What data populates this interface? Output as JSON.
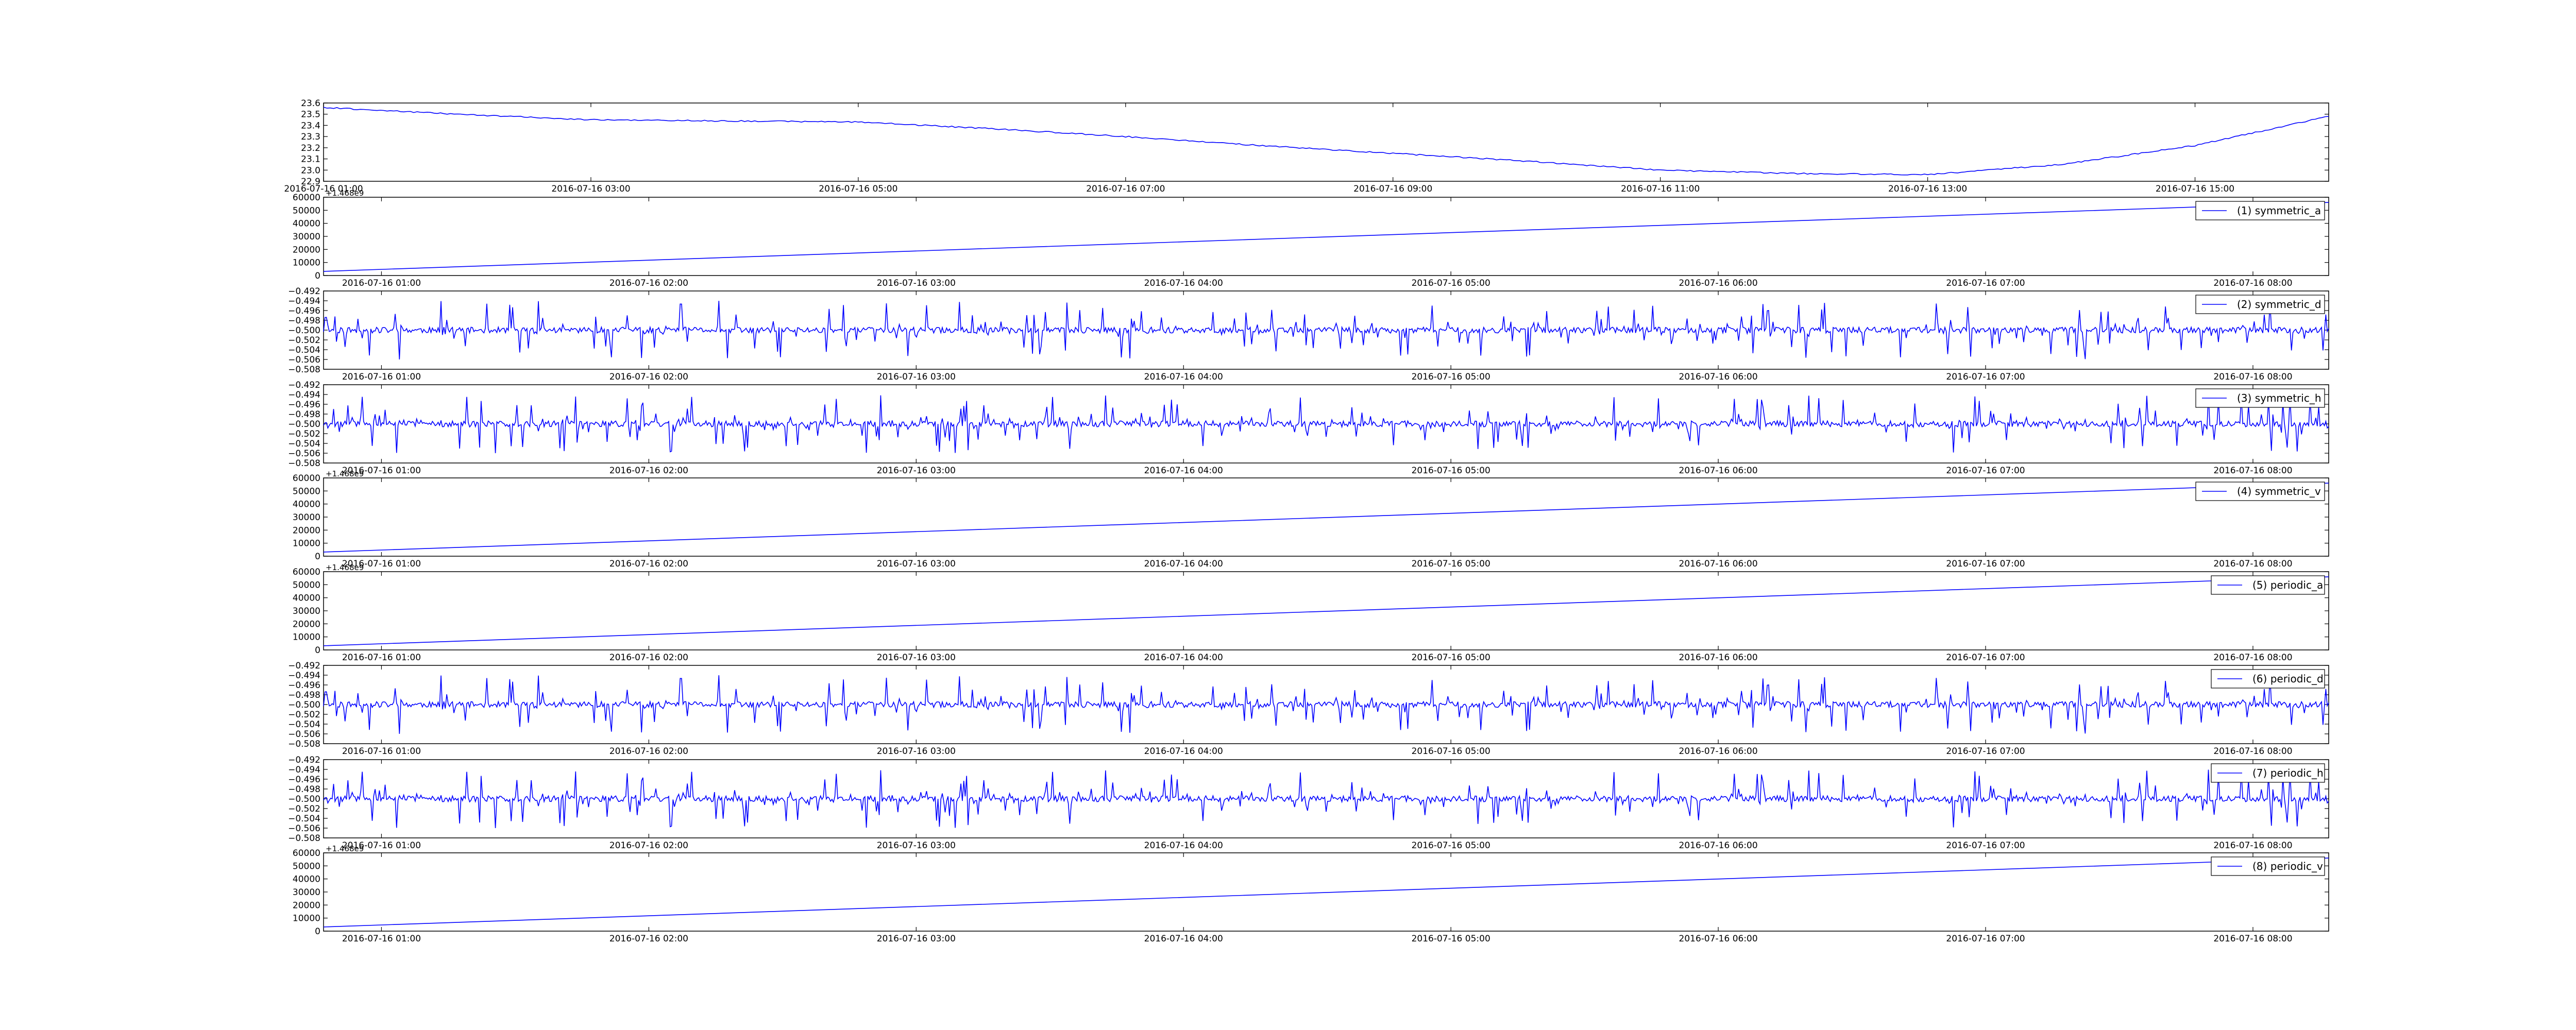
{
  "colors": {
    "line": "#0000ff",
    "axis": "#000000",
    "background": "#ffffff"
  },
  "chart_data": [
    {
      "type": "line",
      "id": "temperature",
      "x_unit": "datetime",
      "x_range": [
        "2016-07-16 01:00",
        "2016-07-16 16:00"
      ],
      "ylim": [
        22.9,
        23.6
      ],
      "yticks": [
        "22.9",
        "23.0",
        "23.1",
        "23.2",
        "23.3",
        "23.4",
        "23.5",
        "23.6"
      ],
      "xticks": [
        "2016-07-16 01:00",
        "2016-07-16 03:00",
        "2016-07-16 05:00",
        "2016-07-16 07:00",
        "2016-07-16 09:00",
        "2016-07-16 11:00",
        "2016-07-16 13:00",
        "2016-07-16 15:00"
      ],
      "x": [
        "01:00",
        "02:00",
        "03:00",
        "04:00",
        "05:00",
        "06:00",
        "07:00",
        "08:00",
        "09:00",
        "10:00",
        "11:00",
        "12:00",
        "13:00",
        "14:00",
        "15:00",
        "16:00"
      ],
      "values": [
        23.56,
        23.5,
        23.45,
        23.44,
        23.43,
        23.37,
        23.3,
        23.22,
        23.15,
        23.08,
        23.0,
        22.97,
        22.96,
        23.05,
        23.22,
        23.48
      ],
      "legend": null,
      "grid": false
    },
    {
      "type": "line",
      "id": "symmetric_a",
      "x_unit": "datetime",
      "x_range": [
        "2016-07-16 00:47",
        "2016-07-16 08:17"
      ],
      "ylim": [
        0,
        60000
      ],
      "yticks": [
        "0",
        "10000",
        "20000",
        "30000",
        "40000",
        "50000",
        "60000"
      ],
      "offset_label": "+1.468e9",
      "xticks": [
        "2016-07-16 01:00",
        "2016-07-16 02:00",
        "2016-07-16 03:00",
        "2016-07-16 04:00",
        "2016-07-16 05:00",
        "2016-07-16 06:00",
        "2016-07-16 07:00",
        "2016-07-16 08:00"
      ],
      "x": [
        "00:47",
        "08:17"
      ],
      "values": [
        3200,
        56000
      ],
      "legend": "(1) symmetric_a",
      "legend_position": "top-right",
      "grid": false
    },
    {
      "type": "line",
      "id": "symmetric_d",
      "x_unit": "datetime",
      "x_range": [
        "2016-07-16 00:47",
        "2016-07-16 08:17"
      ],
      "ylim": [
        -0.508,
        -0.492
      ],
      "yticks": [
        "−0.508",
        "−0.506",
        "−0.504",
        "−0.502",
        "−0.500",
        "−0.498",
        "−0.496",
        "−0.494",
        "−0.492"
      ],
      "xticks": [
        "2016-07-16 01:00",
        "2016-07-16 02:00",
        "2016-07-16 03:00",
        "2016-07-16 04:00",
        "2016-07-16 05:00",
        "2016-07-16 06:00",
        "2016-07-16 07:00",
        "2016-07-16 08:00"
      ],
      "baseline": -0.5,
      "noise_amplitude": 0.006,
      "noise_seed": 11,
      "legend": "(2) symmetric_d",
      "legend_position": "top-right",
      "grid": false
    },
    {
      "type": "line",
      "id": "symmetric_h",
      "x_unit": "datetime",
      "x_range": [
        "2016-07-16 00:47",
        "2016-07-16 08:17"
      ],
      "ylim": [
        -0.508,
        -0.492
      ],
      "yticks": [
        "−0.508",
        "−0.506",
        "−0.504",
        "−0.502",
        "−0.500",
        "−0.498",
        "−0.496",
        "−0.494",
        "−0.492"
      ],
      "xticks": [
        "2016-07-16 01:00",
        "2016-07-16 02:00",
        "2016-07-16 03:00",
        "2016-07-16 04:00",
        "2016-07-16 05:00",
        "2016-07-16 06:00",
        "2016-07-16 07:00",
        "2016-07-16 08:00"
      ],
      "baseline": -0.5,
      "noise_amplitude": 0.006,
      "noise_seed": 29,
      "legend": "(3) symmetric_h",
      "legend_position": "top-right",
      "grid": false
    },
    {
      "type": "line",
      "id": "symmetric_v",
      "x_unit": "datetime",
      "x_range": [
        "2016-07-16 00:47",
        "2016-07-16 08:17"
      ],
      "ylim": [
        0,
        60000
      ],
      "yticks": [
        "0",
        "10000",
        "20000",
        "30000",
        "40000",
        "50000",
        "60000"
      ],
      "offset_label": "+1.468e9",
      "xticks": [
        "2016-07-16 01:00",
        "2016-07-16 02:00",
        "2016-07-16 03:00",
        "2016-07-16 04:00",
        "2016-07-16 05:00",
        "2016-07-16 06:00",
        "2016-07-16 07:00",
        "2016-07-16 08:00"
      ],
      "x": [
        "00:47",
        "08:17"
      ],
      "values": [
        3200,
        56000
      ],
      "legend": "(4) symmetric_v",
      "legend_position": "top-right",
      "grid": false
    },
    {
      "type": "line",
      "id": "periodic_a",
      "x_unit": "datetime",
      "x_range": [
        "2016-07-16 00:47",
        "2016-07-16 08:17"
      ],
      "ylim": [
        0,
        60000
      ],
      "yticks": [
        "0",
        "10000",
        "20000",
        "30000",
        "40000",
        "50000",
        "60000"
      ],
      "offset_label": "+1.468e9",
      "xticks": [
        "2016-07-16 01:00",
        "2016-07-16 02:00",
        "2016-07-16 03:00",
        "2016-07-16 04:00",
        "2016-07-16 05:00",
        "2016-07-16 06:00",
        "2016-07-16 07:00",
        "2016-07-16 08:00"
      ],
      "x": [
        "00:47",
        "08:17"
      ],
      "values": [
        3200,
        56000
      ],
      "legend": "(5) periodic_a",
      "legend_position": "top-right",
      "grid": false
    },
    {
      "type": "line",
      "id": "periodic_d",
      "x_unit": "datetime",
      "x_range": [
        "2016-07-16 00:47",
        "2016-07-16 08:17"
      ],
      "ylim": [
        -0.508,
        -0.492
      ],
      "yticks": [
        "−0.508",
        "−0.506",
        "−0.504",
        "−0.502",
        "−0.500",
        "−0.498",
        "−0.496",
        "−0.494",
        "−0.492"
      ],
      "xticks": [
        "2016-07-16 01:00",
        "2016-07-16 02:00",
        "2016-07-16 03:00",
        "2016-07-16 04:00",
        "2016-07-16 05:00",
        "2016-07-16 06:00",
        "2016-07-16 07:00",
        "2016-07-16 08:00"
      ],
      "baseline": -0.5,
      "noise_amplitude": 0.006,
      "noise_seed": 11,
      "legend": "(6) periodic_d",
      "legend_position": "top-right",
      "grid": false
    },
    {
      "type": "line",
      "id": "periodic_h",
      "x_unit": "datetime",
      "x_range": [
        "2016-07-16 00:47",
        "2016-07-16 08:17"
      ],
      "ylim": [
        -0.508,
        -0.492
      ],
      "yticks": [
        "−0.508",
        "−0.506",
        "−0.504",
        "−0.502",
        "−0.500",
        "−0.498",
        "−0.496",
        "−0.494",
        "−0.492"
      ],
      "xticks": [
        "2016-07-16 01:00",
        "2016-07-16 02:00",
        "2016-07-16 03:00",
        "2016-07-16 04:00",
        "2016-07-16 05:00",
        "2016-07-16 06:00",
        "2016-07-16 07:00",
        "2016-07-16 08:00"
      ],
      "baseline": -0.5,
      "noise_amplitude": 0.006,
      "noise_seed": 29,
      "legend": "(7) periodic_h",
      "legend_position": "top-right",
      "grid": false
    },
    {
      "type": "line",
      "id": "periodic_v",
      "x_unit": "datetime",
      "x_range": [
        "2016-07-16 00:47",
        "2016-07-16 08:17"
      ],
      "ylim": [
        0,
        60000
      ],
      "yticks": [
        "0",
        "10000",
        "20000",
        "30000",
        "40000",
        "50000",
        "60000"
      ],
      "offset_label": "+1.468e9",
      "xticks": [
        "2016-07-16 01:00",
        "2016-07-16 02:00",
        "2016-07-16 03:00",
        "2016-07-16 04:00",
        "2016-07-16 05:00",
        "2016-07-16 06:00",
        "2016-07-16 07:00",
        "2016-07-16 08:00"
      ],
      "x": [
        "00:47",
        "08:17"
      ],
      "values": [
        3200,
        56000
      ],
      "legend": "(8) periodic_v",
      "legend_position": "top-right",
      "grid": false
    }
  ]
}
